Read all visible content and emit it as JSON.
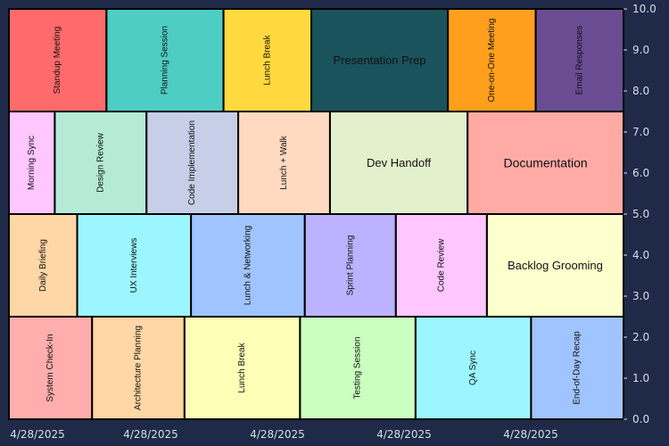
{
  "chart_data": {
    "type": "heatmap",
    "subtype": "treemap-timeline",
    "title": "",
    "xlabel": "",
    "ylabel": "",
    "ylim": [
      0,
      10
    ],
    "yticks": [
      "0.0",
      "1.0",
      "2.0",
      "3.0",
      "4.0",
      "5.0",
      "6.0",
      "7.0",
      "8.0",
      "9.0",
      "10.0"
    ],
    "xtick_labels": [
      "4/28/2025",
      "4/28/2025",
      "4/28/2025",
      "4/28/2025",
      "4/28/2025"
    ],
    "grid": false,
    "legend": "none",
    "rows": [
      {
        "y_range": [
          7.5,
          10.0
        ],
        "cells": [
          {
            "label": "Standup Meeting",
            "value": 1.0,
            "color": "#ff6b6b",
            "orientation": "vertical"
          },
          {
            "label": "Planning Session",
            "value": 1.2,
            "color": "#4ecdc4",
            "orientation": "vertical"
          },
          {
            "label": "Lunch Break",
            "value": 0.9,
            "color": "#ffd93d",
            "orientation": "vertical"
          },
          {
            "label": "Presentation Prep",
            "value": 1.4,
            "color": "#1a535c",
            "orientation": "horizontal",
            "text_color": "#111111"
          },
          {
            "label": "One-on-One Meeting",
            "value": 0.9,
            "color": "#ff9f1c",
            "orientation": "vertical"
          },
          {
            "label": "Email Responses",
            "value": 0.9,
            "color": "#6a4c93",
            "orientation": "vertical"
          }
        ]
      },
      {
        "y_range": [
          5.0,
          7.5
        ],
        "cells": [
          {
            "label": "Morning Sync",
            "value": 0.5,
            "color": "#ffc6ff",
            "orientation": "vertical"
          },
          {
            "label": "Design Review",
            "value": 1.0,
            "color": "#b5ead7",
            "orientation": "vertical"
          },
          {
            "label": "Code Implementation",
            "value": 1.0,
            "color": "#c7cee8",
            "orientation": "vertical"
          },
          {
            "label": "Lunch + Walk",
            "value": 1.0,
            "color": "#ffdac1",
            "orientation": "vertical"
          },
          {
            "label": "Dev Handoff",
            "value": 1.5,
            "color": "#e2f0cb",
            "orientation": "horizontal"
          },
          {
            "label": "Documentation",
            "value": 1.7,
            "color": "#ffaaa5",
            "orientation": "horizontal",
            "font": 14
          }
        ]
      },
      {
        "y_range": [
          2.5,
          5.0
        ],
        "cells": [
          {
            "label": "Daily Briefing",
            "value": 0.75,
            "color": "#ffd6a5",
            "orientation": "vertical"
          },
          {
            "label": "UX Interviews",
            "value": 1.25,
            "color": "#9bf6ff",
            "orientation": "vertical"
          },
          {
            "label": "Lunch & Networking",
            "value": 1.25,
            "color": "#a0c4ff",
            "orientation": "vertical"
          },
          {
            "label": "Sprint Planning",
            "value": 1.0,
            "color": "#bdb2ff",
            "orientation": "vertical"
          },
          {
            "label": "Code Review",
            "value": 1.0,
            "color": "#ffc6ff",
            "orientation": "vertical"
          },
          {
            "label": "Backlog Grooming",
            "value": 1.5,
            "color": "#fdffcc",
            "orientation": "horizontal"
          }
        ]
      },
      {
        "y_range": [
          0.0,
          2.5
        ],
        "cells": [
          {
            "label": "System Check-In",
            "value": 0.9,
            "color": "#ffadad",
            "orientation": "vertical"
          },
          {
            "label": "Architecture Planning",
            "value": 1.0,
            "color": "#ffd6a5",
            "orientation": "vertical"
          },
          {
            "label": "Lunch Break",
            "value": 1.25,
            "color": "#fdffb6",
            "orientation": "vertical"
          },
          {
            "label": "Testing Session",
            "value": 1.25,
            "color": "#caffbf",
            "orientation": "vertical"
          },
          {
            "label": "QA Sync",
            "value": 1.25,
            "color": "#9bf6ff",
            "orientation": "vertical"
          },
          {
            "label": "End-of-Day Recap",
            "value": 1.0,
            "color": "#a0c4ff",
            "orientation": "vertical"
          }
        ]
      }
    ]
  }
}
